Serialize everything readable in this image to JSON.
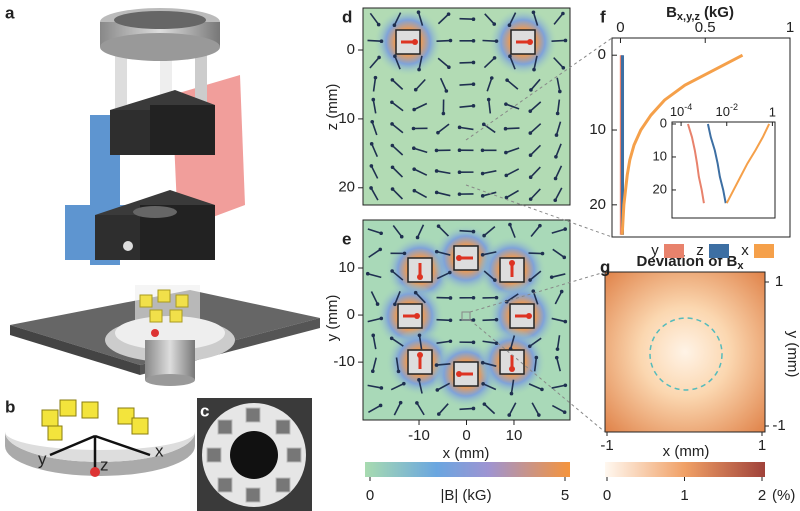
{
  "panels": {
    "a": {
      "label": "a"
    },
    "b": {
      "label": "b",
      "axes": [
        "y",
        "z",
        "x"
      ]
    },
    "c": {
      "label": "c"
    },
    "d": {
      "label": "d",
      "ylabel": "z (mm)",
      "yticks": [
        0,
        10,
        20
      ],
      "ylim": [
        -6.1,
        22.5
      ],
      "xlim": [
        -21.8,
        21.8
      ]
    },
    "e": {
      "label": "e",
      "xlabel": "x (mm)",
      "ylabel": "y (mm)",
      "xticks": [
        -10,
        0,
        10
      ],
      "yticks": [
        -10,
        0,
        10
      ],
      "xlim": [
        -21.8,
        21.8
      ],
      "ylim": [
        -22.3,
        20.2
      ],
      "colorbar": {
        "label": "|B| (kG)",
        "ticks": [
          0,
          5
        ],
        "lim": [
          0,
          5
        ]
      }
    },
    "f": {
      "label": "f",
      "type": "line",
      "title": {
        "main": "B",
        "sub": "x,y,z",
        "unit": "(kG)"
      },
      "xlim": [
        -0.05,
        1.0
      ],
      "xticks": [
        0,
        0.5,
        1
      ],
      "ylim": [
        -2.3,
        24.3
      ],
      "yticks": [
        0,
        10,
        20
      ],
      "z": [
        0,
        2,
        4,
        6,
        8,
        10,
        12,
        14,
        16,
        18,
        20,
        22,
        24
      ],
      "series": [
        {
          "name": "y",
          "color": "#e8826c",
          "values": [
            0.005,
            0.005,
            0.005,
            0.005,
            0.005,
            0.005,
            0.005,
            0.005,
            0.005,
            0.005,
            0.005,
            0.005,
            0.005
          ]
        },
        {
          "name": "z",
          "color": "#3d6fa3",
          "values": [
            0.012,
            0.012,
            0.012,
            0.012,
            0.012,
            0.012,
            0.012,
            0.012,
            0.012,
            0.012,
            0.012,
            0.012,
            0.012
          ]
        },
        {
          "name": "x",
          "color": "#f5a04a",
          "values": [
            0.72,
            0.55,
            0.38,
            0.26,
            0.18,
            0.12,
            0.08,
            0.055,
            0.04,
            0.03,
            0.02,
            0.015,
            0.01
          ]
        }
      ],
      "inset": {
        "xscale": "log",
        "xlim": [
          4e-05,
          1.3
        ],
        "ylim": [
          -0.6,
          28.5
        ],
        "yticks": [
          0,
          10,
          20
        ],
        "xticks": [
          {
            "value": 0.0001,
            "label": "10",
            "exponent": "-4"
          },
          {
            "value": 0.01,
            "label": "10",
            "exponent": "-2"
          },
          1
        ],
        "z": [
          0,
          4,
          8,
          12,
          16,
          20,
          24
        ],
        "series": [
          {
            "name": "y",
            "color": "#e8826c",
            "values": [
              0.0002,
              0.0003,
              0.0004,
              0.0005,
              0.0006,
              0.0008,
              0.001
            ]
          },
          {
            "name": "z",
            "color": "#3d6fa3",
            "values": [
              0.0015,
              0.002,
              0.003,
              0.004,
              0.005,
              0.007,
              0.009
            ]
          },
          {
            "name": "x",
            "color": "#f5a04a",
            "values": [
              0.72,
              0.38,
              0.18,
              0.08,
              0.04,
              0.02,
              0.01
            ]
          }
        ]
      }
    },
    "g": {
      "label": "g",
      "title": {
        "main": "Deviation of B",
        "sub": "x"
      },
      "xlabel": "x (mm)",
      "ylabel": "y (mm)",
      "xticks": [
        -1,
        1
      ],
      "yticks": [
        -1,
        1
      ],
      "xlim": [
        -1,
        1
      ],
      "ylim": [
        -1,
        1
      ],
      "colorbar": {
        "unit": "(%)",
        "ticks": [
          0,
          1,
          2
        ],
        "lim": [
          0,
          2
        ]
      }
    }
  }
}
